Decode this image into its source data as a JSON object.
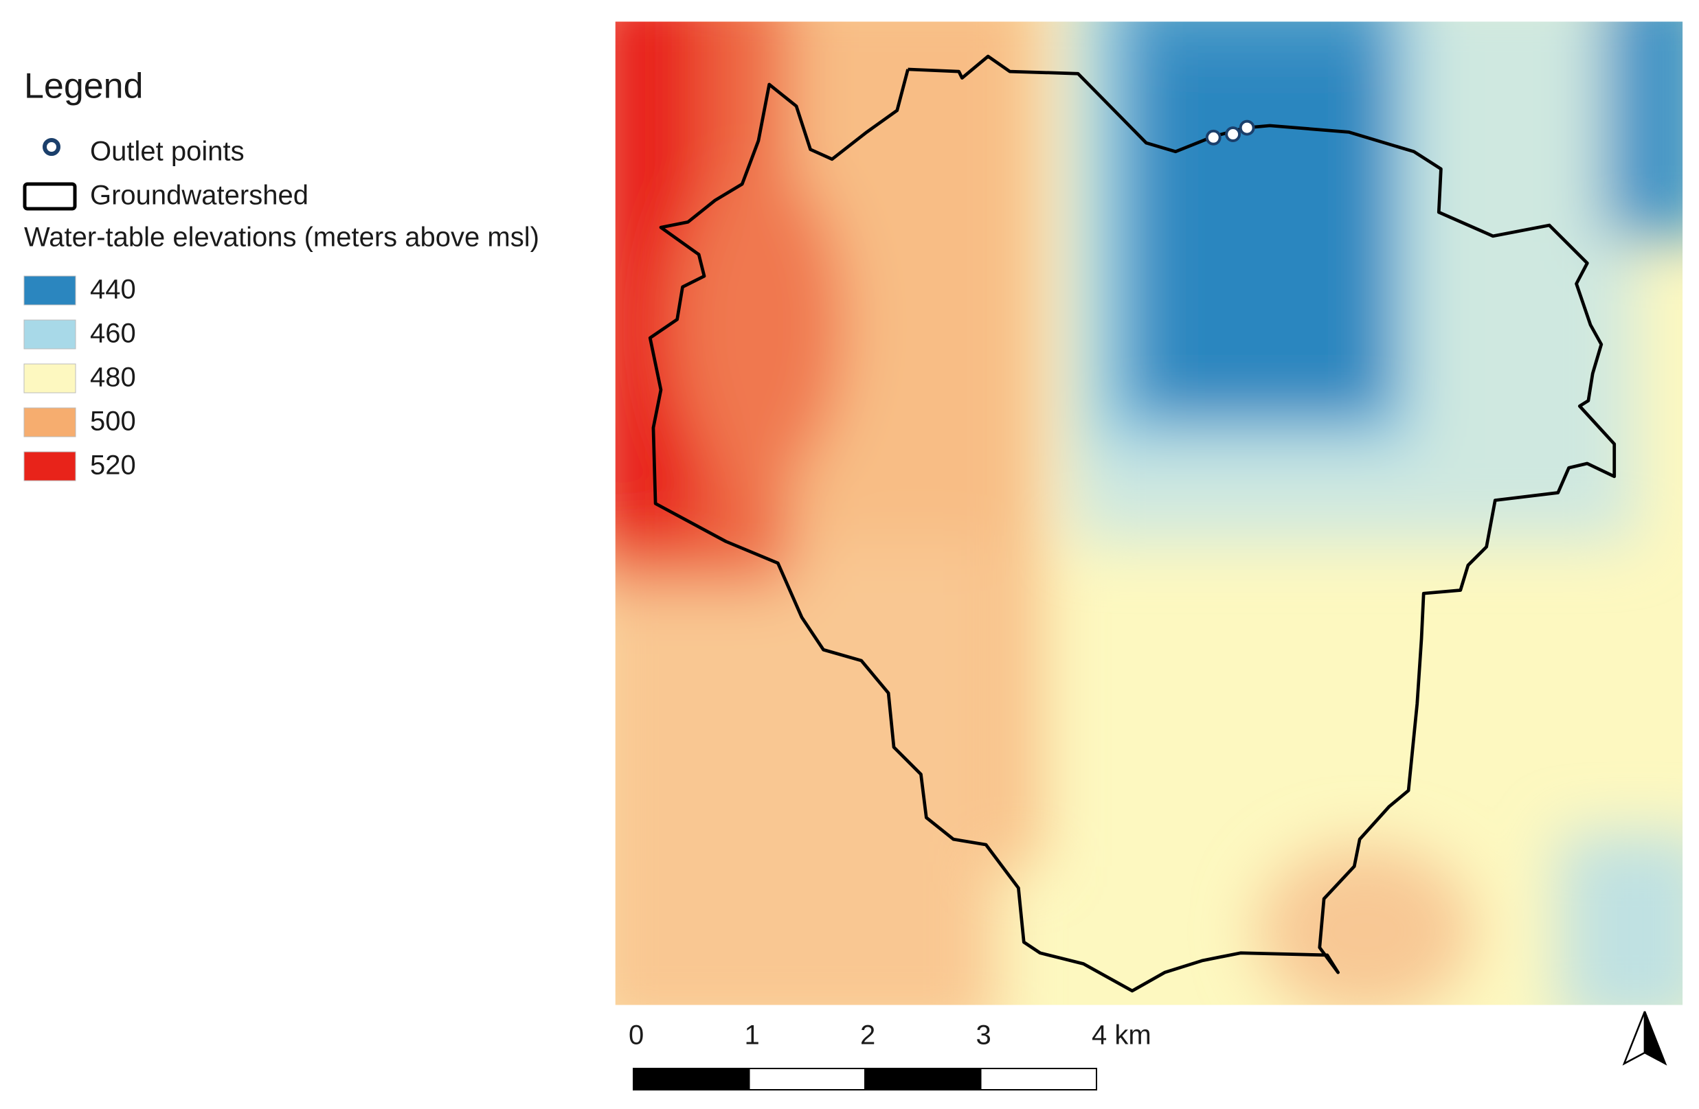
{
  "legend": {
    "title": "Legend",
    "items": [
      "Outlet points",
      "Groundwatershed"
    ],
    "classes_title": "Water-table elevations (meters above msl)",
    "classes": [
      {
        "value": 440,
        "color": "#2b86bf"
      },
      {
        "value": 460,
        "color": "#a8d9e8"
      },
      {
        "value": 480,
        "color": "#fdf8c0"
      },
      {
        "value": 500,
        "color": "#f6ad6f"
      },
      {
        "value": 520,
        "color": "#e8231a"
      }
    ]
  },
  "scale_bar": {
    "ticks": [
      0,
      1,
      2,
      3,
      {
        "value": 4,
        "label": "4 km"
      }
    ]
  }
}
